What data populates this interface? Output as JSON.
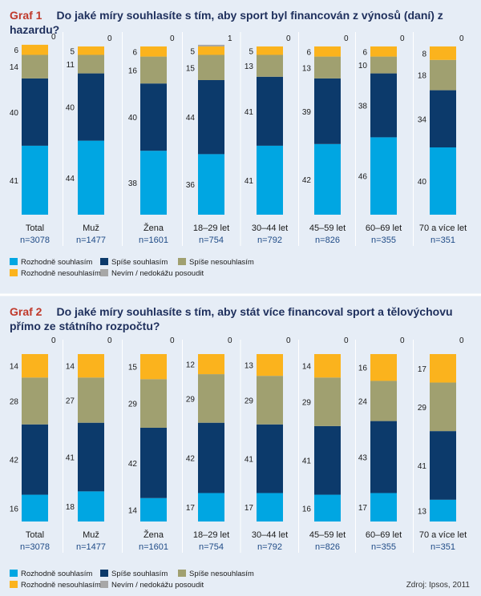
{
  "source": "Zdroj: Ipsos, 2011",
  "legend": [
    {
      "label": "Rozhodně souhlasím",
      "color": "#00a6e2"
    },
    {
      "label": "Spíše souhlasím",
      "color": "#0c3a6b"
    },
    {
      "label": "Spíše nesouhlasím",
      "color": "#a0a070"
    },
    {
      "label": "Rozhodně nesouhlasím",
      "color": "#fbb31d"
    },
    {
      "label": "Nevím / nedokážu posoudit",
      "color": "#a7a7a7"
    }
  ],
  "chart_data": [
    {
      "type": "bar",
      "stacked": true,
      "graf_label": "Graf 1",
      "title": "Do jaké míry souhlasíte s tím, aby sport byl financován z výnosů (daní) z hazardu?",
      "categories": [
        "Total",
        "Muž",
        "Žena",
        "18–29 let",
        "30–44 let",
        "45–59 let",
        "60–69 let",
        "70 a více let"
      ],
      "n_labels": [
        "n=3078",
        "n=1477",
        "n=1601",
        "n=754",
        "n=792",
        "n=826",
        "n=355",
        "n=351"
      ],
      "series": [
        {
          "name": "Rozhodně souhlasím",
          "color": "#00a6e2",
          "values": [
            41,
            44,
            38,
            36,
            41,
            42,
            46,
            40
          ]
        },
        {
          "name": "Spíše souhlasím",
          "color": "#0c3a6b",
          "values": [
            40,
            40,
            40,
            44,
            41,
            39,
            38,
            34
          ]
        },
        {
          "name": "Spíše nesouhlasím",
          "color": "#a0a070",
          "values": [
            14,
            11,
            16,
            15,
            13,
            13,
            10,
            18
          ]
        },
        {
          "name": "Rozhodně nesouhlasím",
          "color": "#fbb31d",
          "values": [
            6,
            5,
            6,
            5,
            5,
            6,
            6,
            8
          ]
        },
        {
          "name": "Nevím / nedokážu posoudit",
          "color": "#a7a7a7",
          "values": [
            0,
            0,
            0,
            1,
            0,
            0,
            0,
            0
          ]
        }
      ],
      "ylim": [
        0,
        100
      ]
    },
    {
      "type": "bar",
      "stacked": true,
      "graf_label": "Graf 2",
      "title": "Do jaké míry souhlasíte s tím, aby stát více financoval sport a tělovýchovu přímo ze státního rozpočtu?",
      "categories": [
        "Total",
        "Muž",
        "Žena",
        "18–29 let",
        "30–44 let",
        "45–59 let",
        "60–69 let",
        "70 a více let"
      ],
      "n_labels": [
        "n=3078",
        "n=1477",
        "n=1601",
        "n=754",
        "n=792",
        "n=826",
        "n=355",
        "n=351"
      ],
      "series": [
        {
          "name": "Rozhodně souhlasím",
          "color": "#00a6e2",
          "values": [
            16,
            18,
            14,
            17,
            17,
            16,
            17,
            13
          ]
        },
        {
          "name": "Spíše souhlasím",
          "color": "#0c3a6b",
          "values": [
            42,
            41,
            42,
            42,
            41,
            41,
            43,
            41
          ]
        },
        {
          "name": "Spíše nesouhlasím",
          "color": "#a0a070",
          "values": [
            28,
            27,
            29,
            29,
            29,
            29,
            24,
            29
          ]
        },
        {
          "name": "Rozhodně nesouhlasím",
          "color": "#fbb31d",
          "values": [
            14,
            14,
            15,
            12,
            13,
            14,
            16,
            17
          ]
        },
        {
          "name": "Nevím / nedokážu posoudit",
          "color": "#a7a7a7",
          "values": [
            0,
            0,
            0,
            0,
            0,
            0,
            0,
            0
          ]
        }
      ],
      "ylim": [
        0,
        100
      ]
    }
  ]
}
